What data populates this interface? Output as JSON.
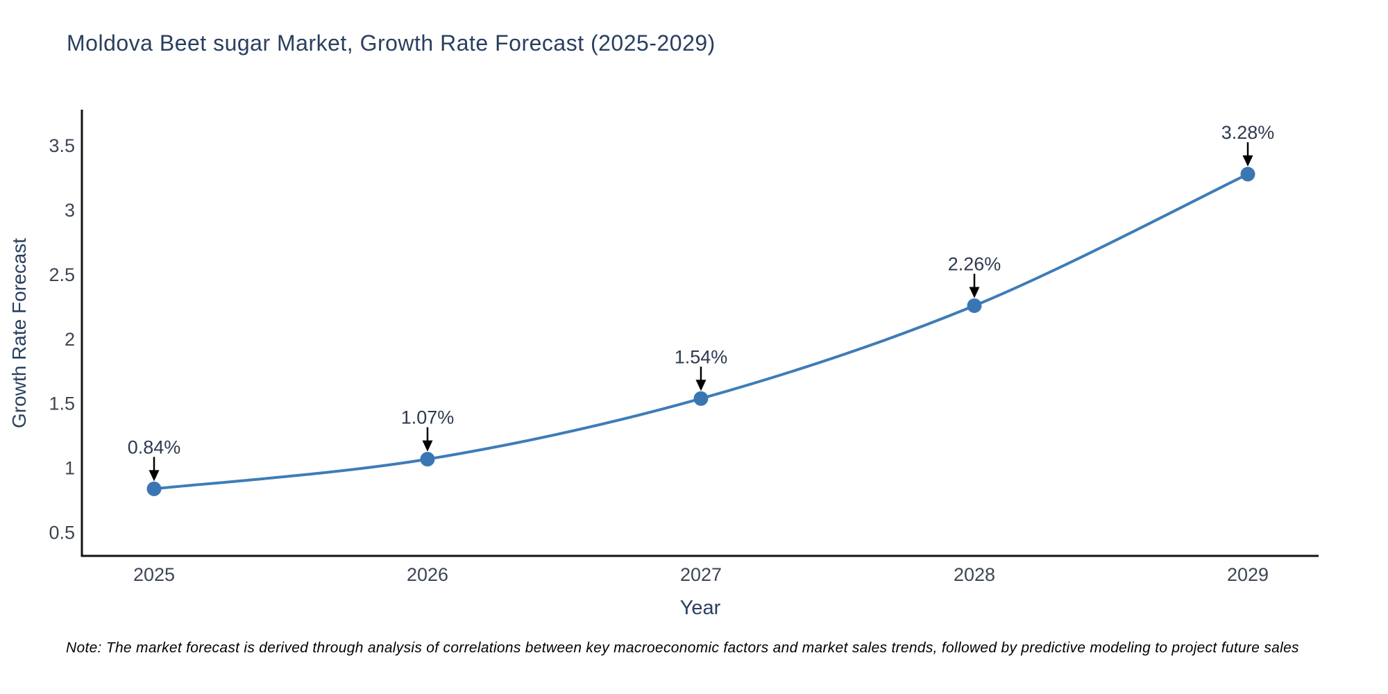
{
  "figure": {
    "title": "Moldova Beet sugar Market, Growth Rate Forecast (2025-2029)",
    "note": "Note: The market forecast is derived through analysis of correlations between key macroeconomic factors and market sales trends, followed by predictive modeling to project future sales"
  },
  "chart_data": {
    "type": "line",
    "title": "Moldova Beet sugar Market, Growth Rate Forecast (2025-2029)",
    "xlabel": "Year",
    "ylabel": "Growth Rate Forecast",
    "categories": [
      "2025",
      "2026",
      "2027",
      "2028",
      "2029"
    ],
    "values": [
      0.84,
      1.07,
      1.54,
      2.26,
      3.28
    ],
    "point_labels": [
      "0.84%",
      "1.07%",
      "1.54%",
      "2.26%",
      "3.28%"
    ],
    "yticks": [
      0.5,
      1,
      1.5,
      2,
      2.5,
      3,
      3.5
    ],
    "ylim": [
      0.32,
      3.78
    ],
    "line_shape": "spline",
    "grid": false,
    "legend": "none",
    "annotations_arrow": "down-arrow-to-point",
    "colors": {
      "line": "#3e7cb8",
      "marker": "#3a76b4",
      "axis": "#111111",
      "arrow": "#000000",
      "title_text": "#2a3f5f",
      "axis_title_text": "#2a3f5f",
      "tick_text": "#3d4554",
      "annotation_text": "#2f3950",
      "note_text": "#000000"
    }
  }
}
